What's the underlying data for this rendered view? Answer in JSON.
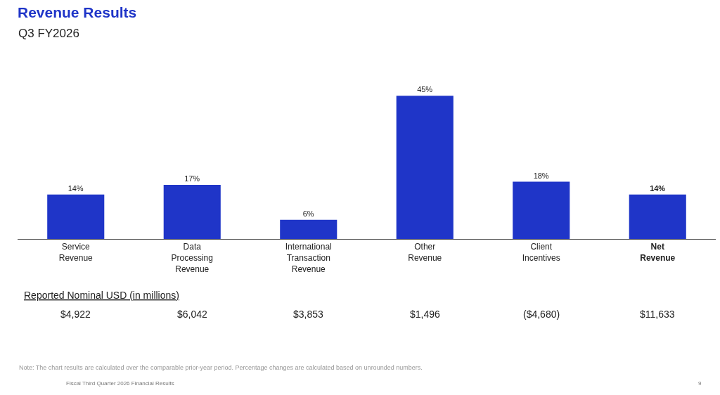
{
  "chart_data": {
    "type": "bar",
    "title": "Revenue Results",
    "subtitle": "Q3 FY2026",
    "categories": [
      "Service Revenue",
      "Data Processing Revenue",
      "International Transaction Revenue",
      "Other Revenue",
      "Client Incentives",
      "Net Revenue"
    ],
    "values": [
      14,
      17,
      6,
      45,
      18,
      14
    ],
    "value_labels": [
      "14%",
      "17%",
      "6%",
      "45%",
      "18%",
      "14%"
    ],
    "color": "#1f35c8",
    "annotations": [
      "Reported Nominal USD (in millions)",
      "$4,922",
      "$6,042",
      "$3,853",
      "$1,496",
      "($4,680)",
      "$11,633",
      "Note: The chart results are calculated over the comparable prior-year period. Percentage changes are calculated based on unrounded numbers.",
      "Fiscal Third Quarter 2026 Financial Results",
      "9"
    ]
  }
}
